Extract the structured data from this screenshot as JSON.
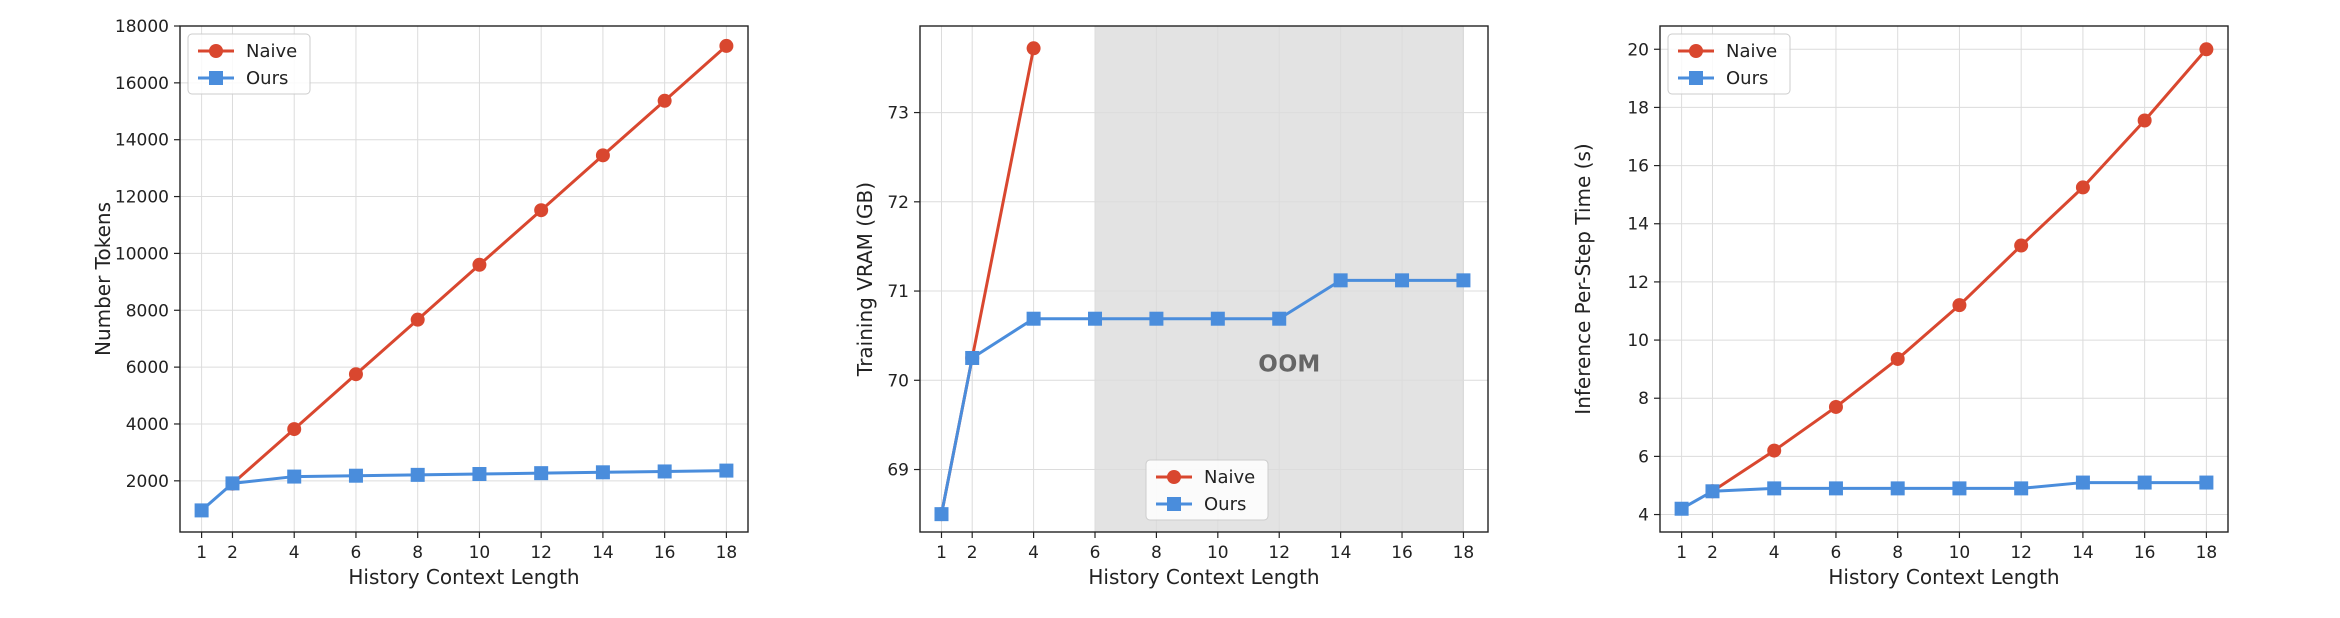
{
  "chart_data": [
    {
      "type": "line",
      "xlabel": "History Context Length",
      "ylabel": "Number Tokens",
      "xlim": [
        0.3,
        18.7
      ],
      "ylim": [
        200,
        18000
      ],
      "xticks": [
        1,
        2,
        4,
        6,
        8,
        10,
        12,
        14,
        16,
        18
      ],
      "yticks": [
        2000,
        4000,
        6000,
        8000,
        10000,
        12000,
        14000,
        16000,
        18000
      ],
      "ytick_labels": [
        "2000",
        "4000",
        "6000",
        "8000",
        "10000",
        "12000",
        "14000",
        "16000",
        "18000"
      ],
      "grid": true,
      "legend": "top-left",
      "series": [
        {
          "name": "Naive",
          "color": "#d9472f",
          "marker": "circle",
          "x": [
            2,
            4,
            6,
            8,
            10,
            12,
            14,
            16,
            18
          ],
          "y": [
            1900,
            3820,
            5750,
            7670,
            9600,
            11520,
            13450,
            15370,
            17300
          ]
        },
        {
          "name": "Ours",
          "color": "#4a8ddc",
          "marker": "square",
          "x": [
            1,
            2,
            4,
            6,
            8,
            10,
            12,
            14,
            16,
            18
          ],
          "y": [
            960,
            1910,
            2150,
            2180,
            2210,
            2240,
            2270,
            2300,
            2330,
            2360
          ]
        }
      ]
    },
    {
      "type": "line",
      "xlabel": "History Context Length",
      "ylabel": "Training VRAM (GB)",
      "xlim": [
        0.3,
        18.8
      ],
      "ylim": [
        68.3,
        73.97
      ],
      "xticks": [
        1,
        2,
        4,
        6,
        8,
        10,
        12,
        14,
        16,
        18
      ],
      "yticks": [
        69,
        70,
        71,
        72,
        73
      ],
      "ytick_labels": [
        "69",
        "70",
        "71",
        "72",
        "73"
      ],
      "grid": true,
      "legend": "bottom-center",
      "shaded_region": {
        "x": [
          6,
          18
        ],
        "label": "OOM"
      },
      "series": [
        {
          "name": "Naive",
          "color": "#d9472f",
          "marker": "circle",
          "x": [
            1,
            2,
            4
          ],
          "y": [
            68.5,
            70.25,
            73.72
          ]
        },
        {
          "name": "Ours",
          "color": "#4a8ddc",
          "marker": "square",
          "x": [
            1,
            2,
            4,
            6,
            8,
            10,
            12,
            14,
            16,
            18
          ],
          "y": [
            68.5,
            70.25,
            70.69,
            70.69,
            70.69,
            70.69,
            70.69,
            71.12,
            71.12,
            71.12
          ]
        }
      ]
    },
    {
      "type": "line",
      "xlabel": "History Context Length",
      "ylabel": "Inference Per-Step Time (s)",
      "xlim": [
        0.3,
        18.7
      ],
      "ylim": [
        3.4,
        20.8
      ],
      "xticks": [
        1,
        2,
        4,
        6,
        8,
        10,
        12,
        14,
        16,
        18
      ],
      "yticks": [
        4,
        6,
        8,
        10,
        12,
        14,
        16,
        18,
        20
      ],
      "ytick_labels": [
        "4",
        "6",
        "8",
        "10",
        "12",
        "14",
        "16",
        "18",
        "20"
      ],
      "grid": true,
      "legend": "top-left",
      "series": [
        {
          "name": "Naive",
          "color": "#d9472f",
          "marker": "circle",
          "x": [
            2,
            4,
            6,
            8,
            10,
            12,
            14,
            16,
            18
          ],
          "y": [
            4.8,
            6.2,
            7.7,
            9.35,
            11.2,
            13.25,
            15.25,
            17.55,
            20.0
          ]
        },
        {
          "name": "Ours",
          "color": "#4a8ddc",
          "marker": "square",
          "x": [
            1,
            2,
            4,
            6,
            8,
            10,
            12,
            14,
            16,
            18
          ],
          "y": [
            4.2,
            4.8,
            4.9,
            4.9,
            4.9,
            4.9,
            4.9,
            5.1,
            5.1,
            5.1
          ]
        }
      ]
    }
  ]
}
